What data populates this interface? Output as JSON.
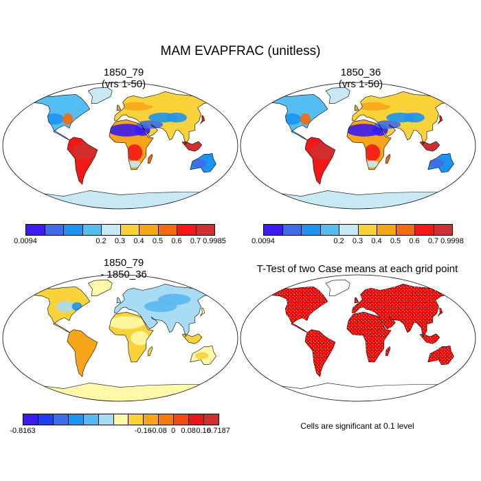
{
  "chart_data": {
    "type": "heatmap",
    "title": "MAM EVAPFRAC (unitless)",
    "projection": "Robinson",
    "panels": [
      {
        "id": "p1",
        "title_line1": "1850_79",
        "title_line2": "(yrs 1-50)",
        "legend": {
          "colors": [
            "#3a1cf0",
            "#3f6ae8",
            "#1e94f0",
            "#54bdf2",
            "#c8e8f4",
            "#fad23a",
            "#f7a61a",
            "#f56a0e",
            "#f21818",
            "#ce3030"
          ],
          "tick_labels": [
            "0.0094",
            "0.2",
            "0.3",
            "0.4",
            "0.5",
            "0.6",
            "0.7",
            "0.9985"
          ],
          "min": 0.0094,
          "max": 0.9985
        }
      },
      {
        "id": "p2",
        "title_line1": "1850_36",
        "title_line2": "(yrs 1-50)",
        "legend": {
          "colors": [
            "#3a1cf0",
            "#3f6ae8",
            "#1e94f0",
            "#54bdf2",
            "#c8e8f4",
            "#fad23a",
            "#f7a61a",
            "#f56a0e",
            "#f21818",
            "#ce3030"
          ],
          "tick_labels": [
            "0.0094",
            "0.2",
            "0.3",
            "0.4",
            "0.5",
            "0.6",
            "0.7",
            "0.9998"
          ],
          "min": 0.0094,
          "max": 0.9998
        }
      },
      {
        "id": "p3",
        "title_line1": "1850_79",
        "title_line2": "- 1850_36",
        "legend": {
          "colors": [
            "#3a1cf0",
            "#2040f0",
            "#3a70e8",
            "#1e94f0",
            "#58b8f0",
            "#a8dcf4",
            "#fff8a8",
            "#fad23a",
            "#f7a61a",
            "#f57a12",
            "#f24a10",
            "#e41818",
            "#ce3030"
          ],
          "tick_labels": [
            "-0.8163",
            "-0.16",
            "-0.08",
            "0",
            "0.08",
            "0.16",
            "0.7187"
          ],
          "min": -0.8163,
          "max": 0.7187
        }
      },
      {
        "id": "p4",
        "title": "T-Test of two Case means at each grid point",
        "note": "Cells are significant at 0.1 level",
        "colors": [
          "#ff0000"
        ]
      }
    ]
  }
}
